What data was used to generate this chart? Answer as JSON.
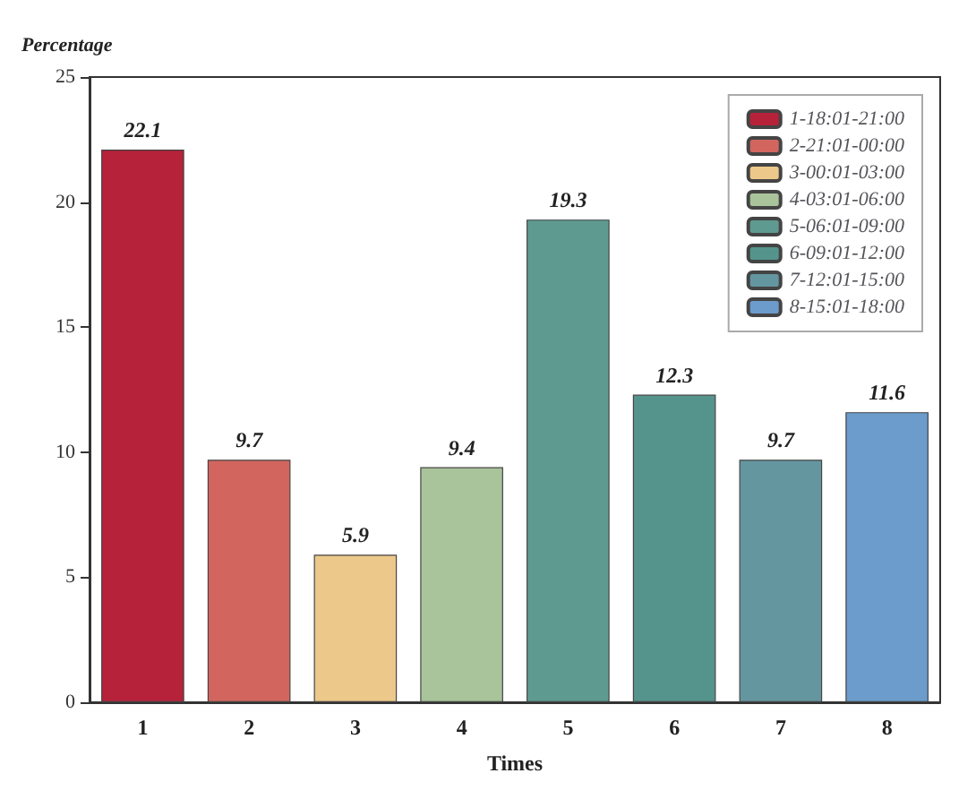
{
  "chart_data": {
    "type": "bar",
    "ylabel": "Percentage",
    "xlabel": "Times",
    "categories": [
      "1",
      "2",
      "3",
      "4",
      "5",
      "6",
      "7",
      "8"
    ],
    "stacked": true,
    "data_labels": true,
    "legend": "top right",
    "grid": false,
    "ylim": [
      0,
      25
    ],
    "yticks": [
      0,
      5,
      10,
      15,
      20,
      25
    ],
    "series": [
      {
        "name": "1-18:01-21:00",
        "color": "#b5223a",
        "values": [
          22.1,
          null,
          null,
          null,
          null,
          null,
          null,
          null
        ]
      },
      {
        "name": "2-21:01-00:00",
        "color": "#d2665f",
        "values": [
          null,
          9.7,
          null,
          null,
          null,
          null,
          null,
          null
        ]
      },
      {
        "name": "3-00:01-03:00",
        "color": "#ecc98a",
        "values": [
          null,
          null,
          5.9,
          null,
          null,
          null,
          null,
          null
        ]
      },
      {
        "name": "4-03:01-06:00",
        "color": "#a9c39a",
        "values": [
          null,
          null,
          null,
          9.4,
          null,
          null,
          null,
          null
        ]
      },
      {
        "name": "5-06:01-09:00",
        "color": "#5f9a90",
        "values": [
          null,
          null,
          null,
          null,
          19.3,
          null,
          null,
          null
        ]
      },
      {
        "name": "6-09:01-12:00",
        "color": "#55948c",
        "values": [
          null,
          null,
          null,
          null,
          null,
          12.3,
          null,
          null
        ]
      },
      {
        "name": "7-12:01-15:00",
        "color": "#6496a0",
        "values": [
          null,
          null,
          null,
          null,
          null,
          null,
          9.7,
          null
        ]
      },
      {
        "name": "8-15:01-18:00",
        "color": "#6b9ccb",
        "values": [
          null,
          null,
          null,
          null,
          null,
          null,
          null,
          11.6
        ]
      }
    ]
  }
}
